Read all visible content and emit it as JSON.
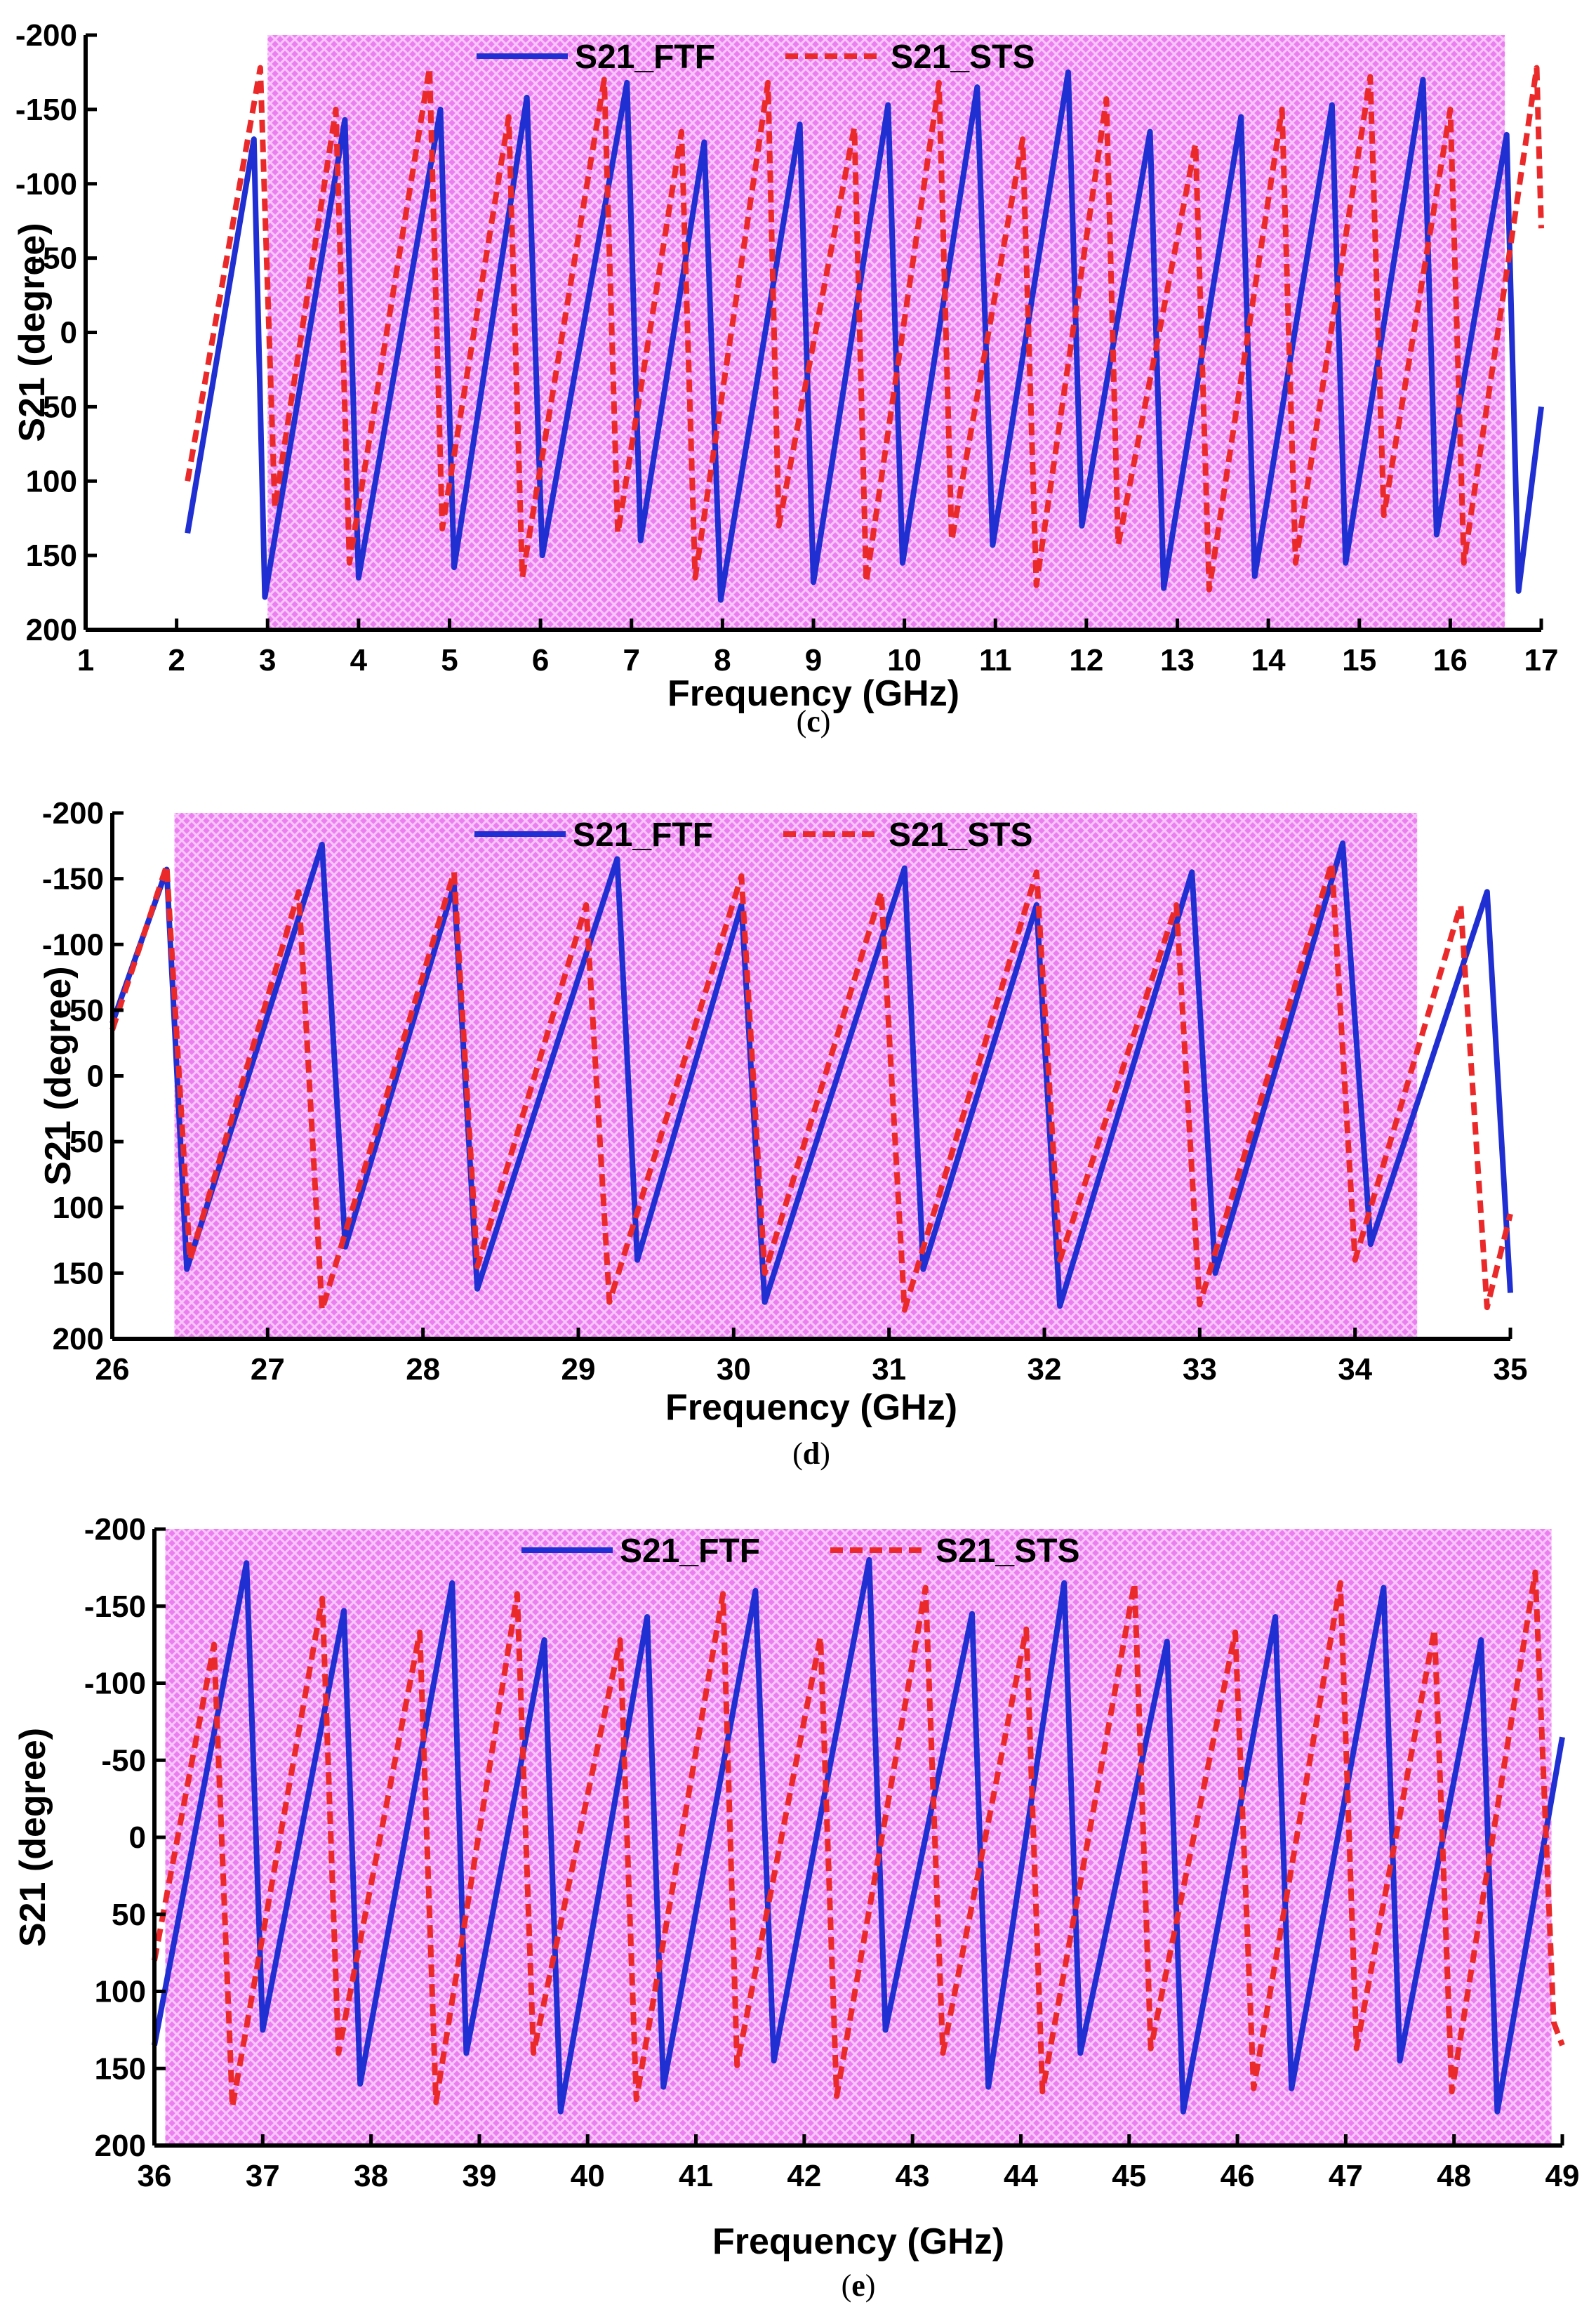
{
  "chart_data": [
    {
      "type": "line",
      "caption_open": "(",
      "caption_letter": "c",
      "caption_close": ")",
      "xlabel": "Frequency (GHz)",
      "ylabel": "S21 (degree)",
      "xlim": [
        1,
        17
      ],
      "ylim": [
        -200,
        200
      ],
      "y_inverted": true,
      "x_ticks": [
        1,
        2,
        3,
        4,
        5,
        6,
        7,
        8,
        9,
        10,
        11,
        12,
        13,
        14,
        15,
        16,
        17
      ],
      "y_ticks": [
        -200,
        -150,
        -100,
        -50,
        0,
        50,
        100,
        150,
        200
      ],
      "highlight_band": [
        3.0,
        16.6
      ],
      "legend": [
        "S21_FTF",
        "S21_STS"
      ],
      "series": [
        {
          "name": "S21_FTF",
          "style": "solid",
          "color": "#1f2fd1",
          "x": [
            2.12,
            2.85,
            2.97,
            3.85,
            4.0,
            4.9,
            5.05,
            5.85,
            6.02,
            6.95,
            7.1,
            7.8,
            7.98,
            8.85,
            9.0,
            9.82,
            9.98,
            10.8,
            10.97,
            11.8,
            11.95,
            12.7,
            12.85,
            13.7,
            13.85,
            14.7,
            14.85,
            15.7,
            15.85,
            16.62,
            16.75,
            17.0
          ],
          "y": [
            135,
            -130,
            178,
            -143,
            165,
            -150,
            158,
            -158,
            150,
            -168,
            140,
            -128,
            180,
            -140,
            168,
            -153,
            155,
            -165,
            143,
            -175,
            130,
            -135,
            172,
            -145,
            164,
            -153,
            155,
            -170,
            136,
            -133,
            174,
            50
          ]
        },
        {
          "name": "S21_STS",
          "style": "dashed",
          "color": "#ea2a2a",
          "x": [
            2.12,
            2.92,
            3.08,
            3.75,
            3.9,
            4.78,
            4.92,
            5.65,
            5.8,
            6.7,
            6.85,
            7.55,
            7.7,
            8.5,
            8.62,
            9.45,
            9.58,
            10.38,
            10.52,
            11.3,
            11.45,
            12.22,
            12.35,
            13.2,
            13.35,
            14.15,
            14.3,
            15.12,
            15.27,
            16.0,
            16.15,
            16.95,
            17.0
          ],
          "y": [
            100,
            -178,
            118,
            -150,
            155,
            -178,
            132,
            -145,
            165,
            -170,
            135,
            -135,
            165,
            -168,
            130,
            -138,
            168,
            -168,
            140,
            -130,
            170,
            -157,
            143,
            -127,
            173,
            -150,
            155,
            -172,
            123,
            -150,
            155,
            -178,
            -70
          ]
        }
      ]
    },
    {
      "type": "line",
      "caption_open": "(",
      "caption_letter": "d",
      "caption_close": ")",
      "xlabel": "Frequency (GHz)",
      "ylabel": "S21 (degree)",
      "xlim": [
        26,
        35
      ],
      "ylim": [
        -200,
        200
      ],
      "y_inverted": true,
      "x_ticks": [
        26,
        27,
        28,
        29,
        30,
        31,
        32,
        33,
        34,
        35
      ],
      "y_ticks": [
        -200,
        -150,
        -100,
        -50,
        0,
        50,
        100,
        150,
        200
      ],
      "highlight_band": [
        26.4,
        34.4
      ],
      "legend": [
        "S21_FTF",
        "S21_STS"
      ],
      "series": [
        {
          "name": "S21_FTF",
          "style": "solid",
          "color": "#1f2fd1",
          "x": [
            26.0,
            26.35,
            26.48,
            27.35,
            27.5,
            28.2,
            28.35,
            29.25,
            29.38,
            30.05,
            30.2,
            31.1,
            31.22,
            31.95,
            32.1,
            32.95,
            33.1,
            33.92,
            34.1,
            34.85,
            35.0
          ],
          "y": [
            -40,
            -157,
            147,
            -176,
            130,
            -145,
            162,
            -165,
            140,
            -130,
            172,
            -158,
            147,
            -130,
            175,
            -155,
            150,
            -177,
            128,
            -140,
            165
          ]
        },
        {
          "name": "S21_STS",
          "style": "dashed",
          "color": "#ea2a2a",
          "x": [
            26.0,
            26.35,
            26.5,
            27.2,
            27.35,
            28.2,
            28.35,
            29.05,
            29.2,
            30.05,
            30.2,
            30.95,
            31.1,
            31.95,
            32.1,
            32.85,
            33.0,
            33.85,
            34.0,
            34.68,
            34.85,
            35.0
          ],
          "y": [
            -35,
            -160,
            140,
            -140,
            178,
            -155,
            145,
            -130,
            172,
            -152,
            150,
            -140,
            178,
            -155,
            140,
            -130,
            174,
            -162,
            140,
            -130,
            176,
            105
          ]
        }
      ]
    },
    {
      "type": "line",
      "caption_open": "(",
      "caption_letter": "e",
      "caption_close": ")",
      "xlabel": "Frequency (GHz)",
      "ylabel": "S21 (degree)",
      "xlim": [
        36,
        49
      ],
      "ylim": [
        -200,
        200
      ],
      "y_inverted": true,
      "x_ticks": [
        36,
        37,
        38,
        39,
        40,
        41,
        42,
        43,
        44,
        45,
        46,
        47,
        48,
        49
      ],
      "y_ticks": [
        -200,
        -150,
        -100,
        -50,
        0,
        50,
        100,
        150,
        200
      ],
      "highlight_band": [
        36.1,
        48.9
      ],
      "legend": [
        "S21_FTF",
        "S21_STS"
      ],
      "series": [
        {
          "name": "S21_FTF",
          "style": "solid",
          "color": "#1f2fd1",
          "x": [
            36.0,
            36.85,
            37.0,
            37.75,
            37.9,
            38.75,
            38.88,
            39.6,
            39.75,
            40.55,
            40.7,
            41.55,
            41.72,
            42.6,
            42.75,
            43.55,
            43.7,
            44.4,
            44.55,
            45.35,
            45.5,
            46.35,
            46.5,
            47.35,
            47.5,
            48.25,
            48.4,
            49.0
          ],
          "y": [
            135,
            -178,
            125,
            -147,
            160,
            -165,
            140,
            -128,
            178,
            -143,
            162,
            -160,
            145,
            -180,
            125,
            -145,
            162,
            -165,
            140,
            -127,
            178,
            -143,
            163,
            -162,
            145,
            -128,
            178,
            -65
          ]
        },
        {
          "name": "S21_STS",
          "style": "dashed",
          "color": "#ea2a2a",
          "x": [
            36.0,
            36.55,
            36.72,
            37.55,
            37.7,
            38.45,
            38.6,
            39.35,
            39.5,
            40.3,
            40.45,
            41.25,
            41.38,
            42.15,
            42.3,
            43.12,
            43.28,
            44.05,
            44.2,
            45.05,
            45.2,
            45.98,
            46.15,
            46.95,
            47.1,
            47.82,
            47.98,
            48.75,
            48.92,
            49.0
          ],
          "y": [
            80,
            -125,
            175,
            -155,
            140,
            -133,
            172,
            -158,
            140,
            -128,
            170,
            -158,
            148,
            -130,
            168,
            -162,
            140,
            -135,
            165,
            -165,
            137,
            -133,
            163,
            -165,
            137,
            -135,
            165,
            -172,
            120,
            135
          ]
        }
      ]
    }
  ]
}
